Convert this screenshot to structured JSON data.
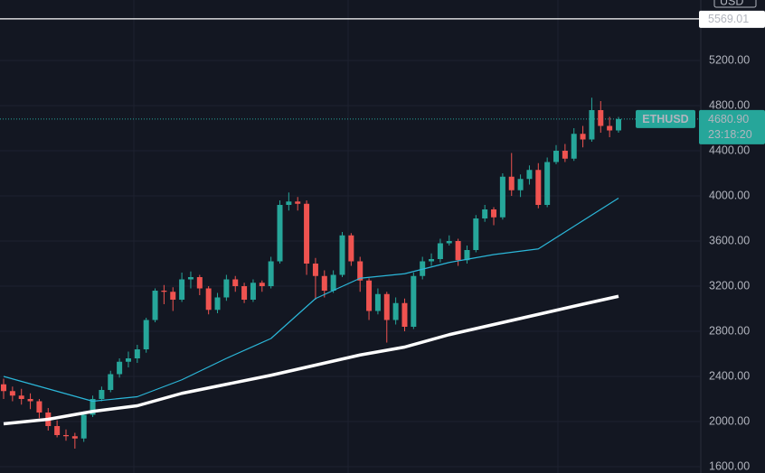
{
  "chart_data": {
    "type": "candlestick",
    "symbol": "ETHUSD",
    "currency": "USD",
    "countdown": "23:18:20",
    "last_price": {
      "value": 4680.9,
      "label": "4680.90"
    },
    "price_line": 5569.01,
    "up_color": "#26a69a",
    "down_color": "#ef5350",
    "ylim": [
      1544,
      5736
    ],
    "yticks": [
      {
        "value": 1600,
        "label": "1600.00"
      },
      {
        "value": 2000,
        "label": "2000.00"
      },
      {
        "value": 2400,
        "label": "2400.00"
      },
      {
        "value": 2800,
        "label": "2800.00"
      },
      {
        "value": 3200,
        "label": "3200.00"
      },
      {
        "value": 3600,
        "label": "3600.00"
      },
      {
        "value": 4000,
        "label": "4000.00"
      },
      {
        "value": 4400,
        "label": "4400.00"
      },
      {
        "value": 4800,
        "label": "4800.00"
      },
      {
        "value": 5200,
        "label": "5200.00"
      }
    ],
    "grid": true,
    "candles": [
      [
        2330,
        2380,
        2200,
        2270
      ],
      [
        2270,
        2310,
        2180,
        2230
      ],
      [
        2230,
        2290,
        2150,
        2200
      ],
      [
        2200,
        2250,
        2110,
        2180
      ],
      [
        2180,
        2200,
        2030,
        2080
      ],
      [
        2080,
        2120,
        1920,
        1960
      ],
      [
        1960,
        2010,
        1860,
        1880
      ],
      [
        1880,
        1930,
        1830,
        1870
      ],
      [
        1870,
        1900,
        1760,
        1850
      ],
      [
        1850,
        2090,
        1820,
        2060
      ],
      [
        2060,
        2230,
        2040,
        2200
      ],
      [
        2200,
        2310,
        2180,
        2280
      ],
      [
        2280,
        2450,
        2260,
        2420
      ],
      [
        2420,
        2560,
        2390,
        2530
      ],
      [
        2530,
        2620,
        2480,
        2560
      ],
      [
        2560,
        2680,
        2520,
        2640
      ],
      [
        2640,
        2920,
        2610,
        2900
      ],
      [
        2900,
        3180,
        2880,
        3160
      ],
      [
        3160,
        3210,
        3040,
        3150
      ],
      [
        3150,
        3190,
        2980,
        3080
      ],
      [
        3080,
        3320,
        3060,
        3260
      ],
      [
        3260,
        3330,
        3180,
        3280
      ],
      [
        3280,
        3300,
        3120,
        3180
      ],
      [
        3180,
        3200,
        2950,
        2990
      ],
      [
        2990,
        3140,
        2960,
        3100
      ],
      [
        3100,
        3300,
        3070,
        3260
      ],
      [
        3260,
        3290,
        3150,
        3200
      ],
      [
        3200,
        3230,
        3050,
        3080
      ],
      [
        3080,
        3260,
        3060,
        3230
      ],
      [
        3230,
        3250,
        3150,
        3200
      ],
      [
        3200,
        3460,
        3180,
        3420
      ],
      [
        3420,
        3960,
        3400,
        3920
      ],
      [
        3920,
        4030,
        3870,
        3950
      ],
      [
        3950,
        3990,
        3870,
        3930
      ],
      [
        3930,
        3960,
        3300,
        3400
      ],
      [
        3400,
        3450,
        3080,
        3290
      ],
      [
        3290,
        3340,
        3100,
        3160
      ],
      [
        3160,
        3340,
        3140,
        3300
      ],
      [
        3300,
        3680,
        3280,
        3650
      ],
      [
        3650,
        3670,
        3380,
        3420
      ],
      [
        3420,
        3460,
        3150,
        3250
      ],
      [
        3250,
        3270,
        2900,
        2980
      ],
      [
        2980,
        3180,
        2950,
        3130
      ],
      [
        3130,
        3150,
        2700,
        2900
      ],
      [
        2900,
        3100,
        2860,
        3050
      ],
      [
        3050,
        3090,
        2800,
        2840
      ],
      [
        2840,
        3320,
        2820,
        3290
      ],
      [
        3290,
        3460,
        3260,
        3420
      ],
      [
        3420,
        3490,
        3380,
        3440
      ],
      [
        3440,
        3620,
        3410,
        3580
      ],
      [
        3580,
        3650,
        3560,
        3600
      ],
      [
        3600,
        3620,
        3380,
        3430
      ],
      [
        3430,
        3560,
        3400,
        3520
      ],
      [
        3520,
        3830,
        3500,
        3800
      ],
      [
        3800,
        3920,
        3770,
        3880
      ],
      [
        3880,
        3900,
        3740,
        3810
      ],
      [
        3810,
        4200,
        3790,
        4170
      ],
      [
        4170,
        4380,
        4000,
        4050
      ],
      [
        4050,
        4190,
        3990,
        4150
      ],
      [
        4150,
        4270,
        4100,
        4230
      ],
      [
        4230,
        4290,
        3890,
        3920
      ],
      [
        3920,
        4340,
        3900,
        4300
      ],
      [
        4300,
        4450,
        4280,
        4400
      ],
      [
        4400,
        4460,
        4300,
        4330
      ],
      [
        4330,
        4600,
        4310,
        4550
      ],
      [
        4550,
        4620,
        4430,
        4500
      ],
      [
        4500,
        4870,
        4480,
        4760
      ],
      [
        4760,
        4840,
        4560,
        4620
      ],
      [
        4620,
        4700,
        4520,
        4580
      ],
      [
        4580,
        4700,
        4560,
        4680.9
      ]
    ],
    "moving_averages": [
      {
        "color": "#2bb7d9",
        "width": 1.2,
        "x": [
          0,
          5,
          10,
          15,
          20,
          25,
          30,
          35,
          40,
          45,
          50,
          55,
          60,
          65,
          69
        ],
        "values": [
          2400,
          2290,
          2180,
          2220,
          2370,
          2560,
          2736,
          3090,
          3270,
          3310,
          3410,
          3480,
          3530,
          3780,
          3980
        ]
      },
      {
        "color": "#ffffff",
        "width": 3.5,
        "x": [
          0,
          5,
          10,
          15,
          20,
          25,
          30,
          35,
          40,
          45,
          50,
          55,
          60,
          65,
          69
        ],
        "values": [
          1980,
          2020,
          2090,
          2140,
          2250,
          2330,
          2410,
          2500,
          2590,
          2660,
          2770,
          2860,
          2950,
          3040,
          3110
        ]
      }
    ]
  }
}
